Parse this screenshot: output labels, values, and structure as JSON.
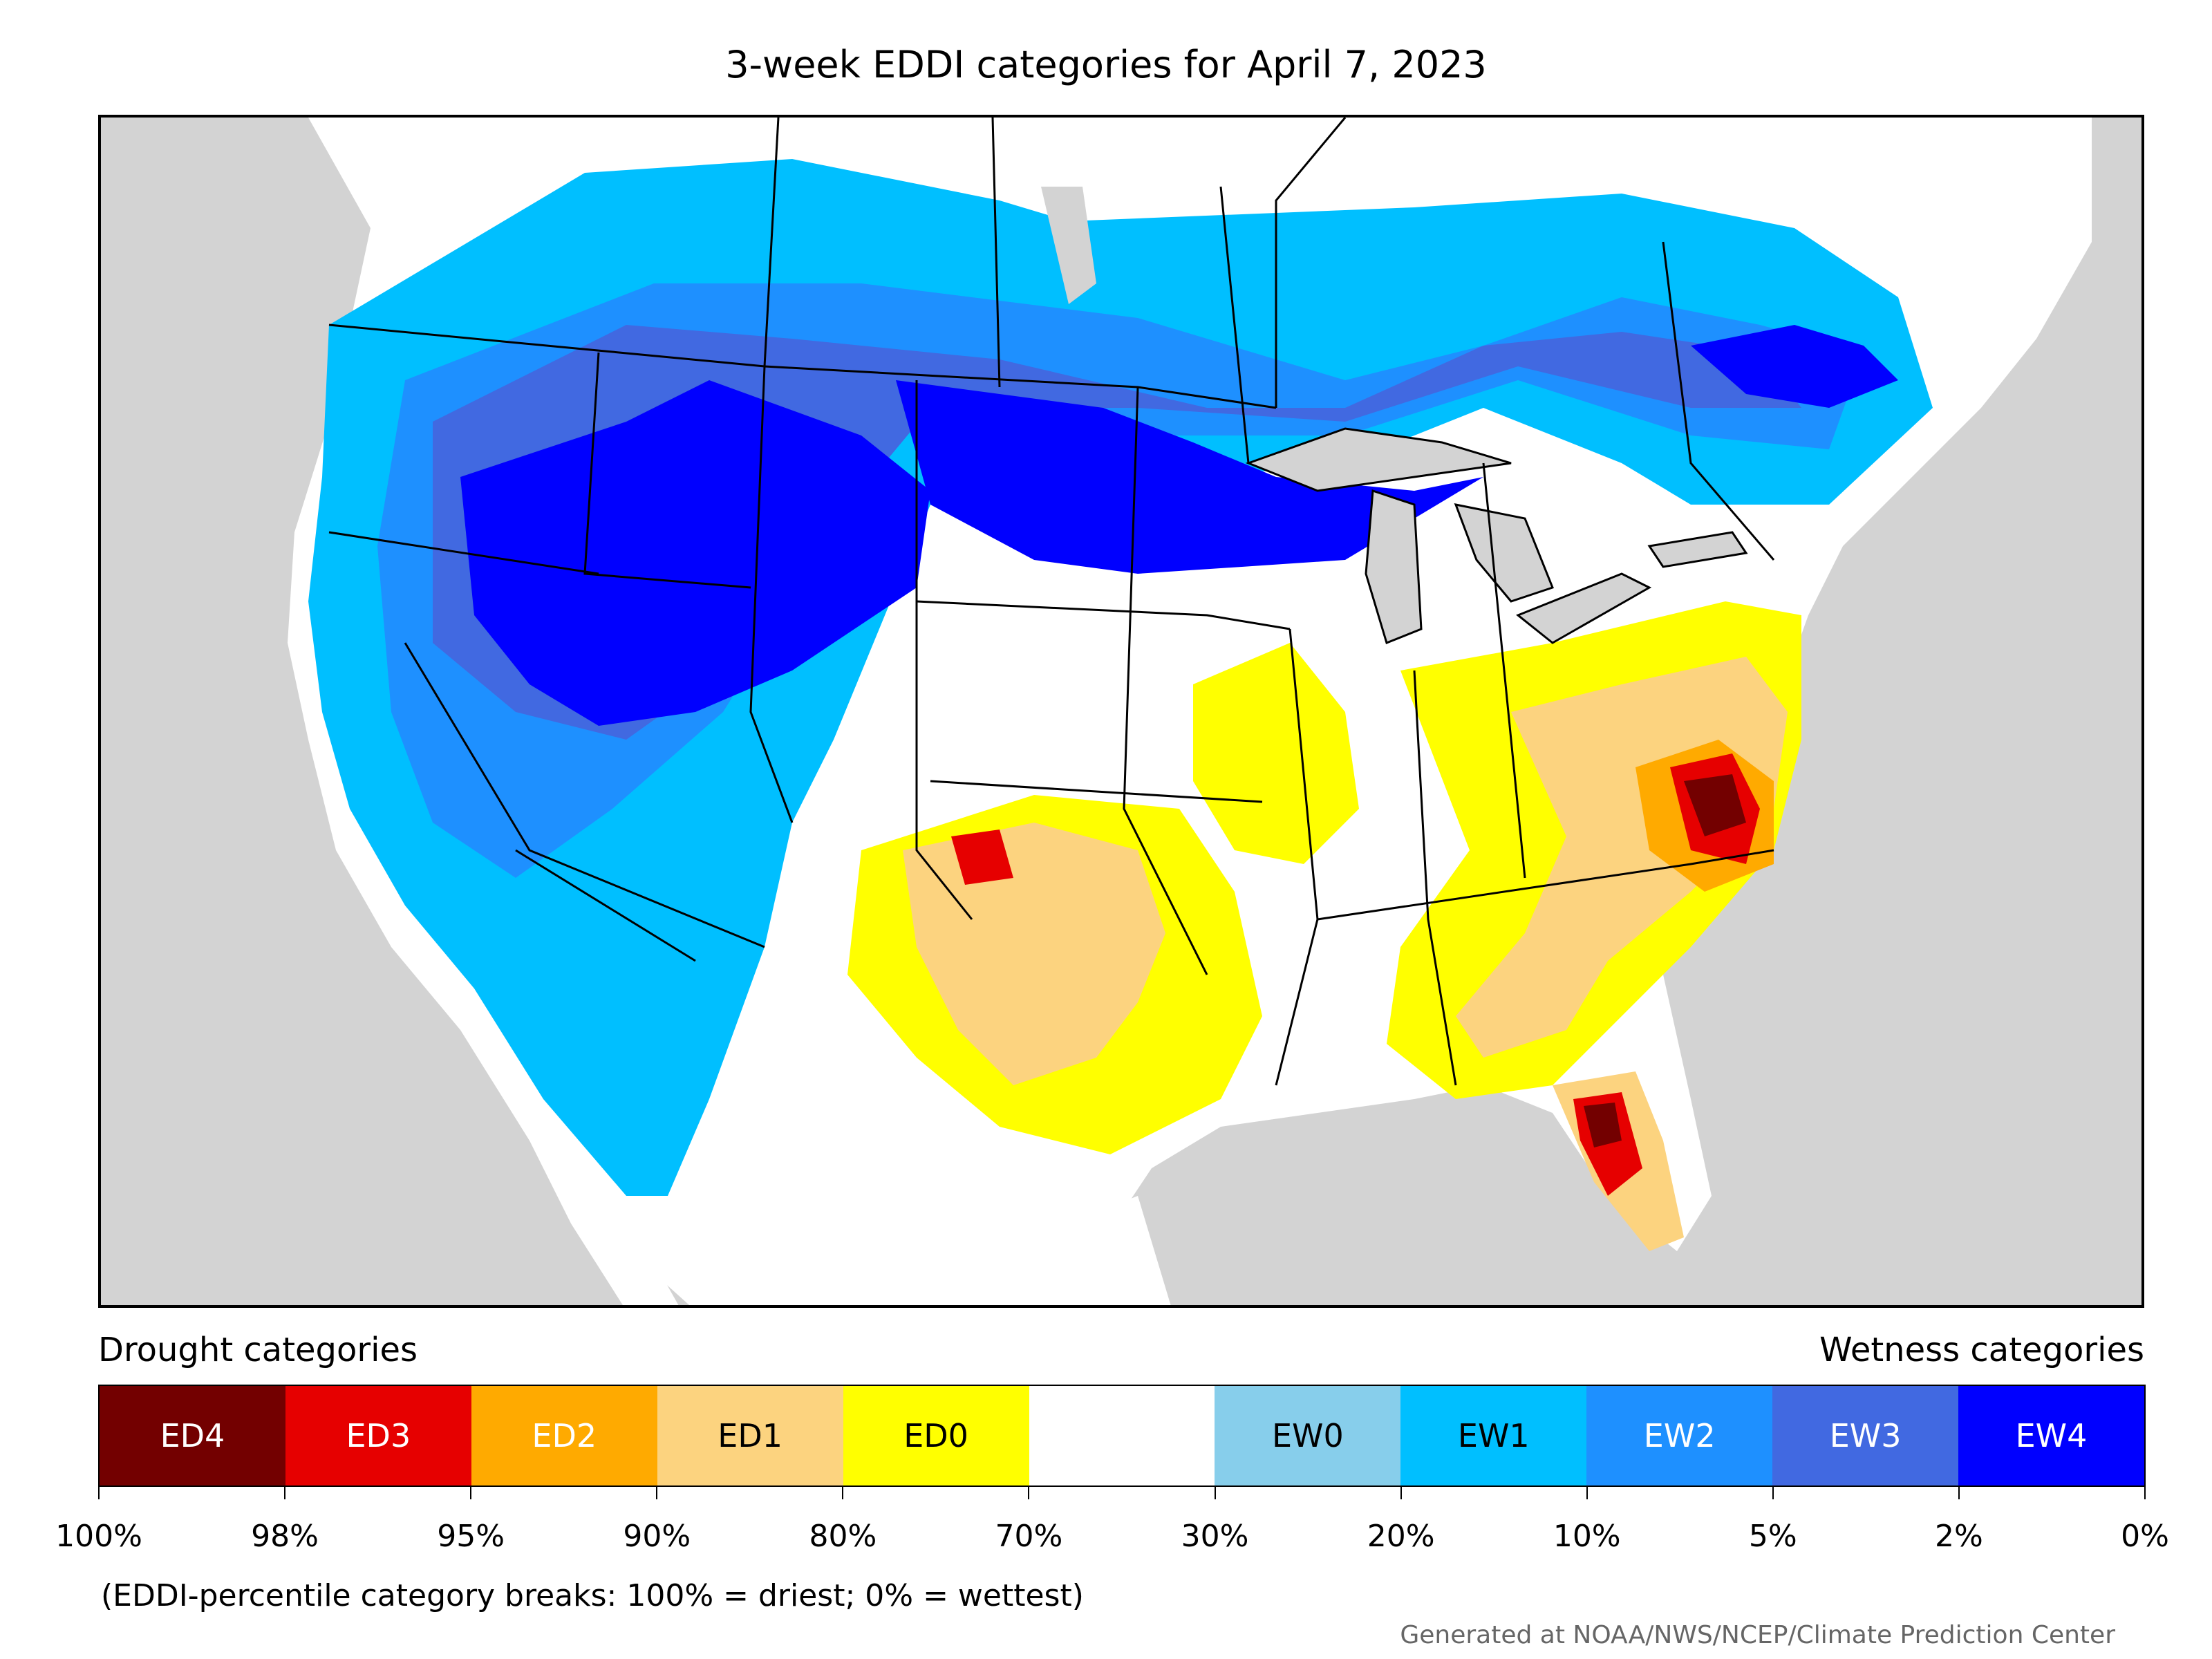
{
  "title": "3-week EDDI categories for April 7, 2023",
  "legend": {
    "drought_heading": "Drought categories",
    "wetness_heading": "Wetness categories",
    "categories": [
      {
        "label": "ED4",
        "color": "#730000",
        "text_color": "#ffffff"
      },
      {
        "label": "ED3",
        "color": "#e60000",
        "text_color": "#ffffff"
      },
      {
        "label": "ED2",
        "color": "#ffaa00",
        "text_color": "#ffffff"
      },
      {
        "label": "ED1",
        "color": "#fcd37f",
        "text_color": "#000000"
      },
      {
        "label": "ED0",
        "color": "#ffff00",
        "text_color": "#000000"
      },
      {
        "label": "",
        "color": "#ffffff",
        "text_color": "#000000"
      },
      {
        "label": "EW0",
        "color": "#87ceeb",
        "text_color": "#000000"
      },
      {
        "label": "EW1",
        "color": "#00bfff",
        "text_color": "#000000"
      },
      {
        "label": "EW2",
        "color": "#1e90ff",
        "text_color": "#ffffff"
      },
      {
        "label": "EW3",
        "color": "#4169e1",
        "text_color": "#ffffff"
      },
      {
        "label": "EW4",
        "color": "#0000ff",
        "text_color": "#ffffff"
      }
    ],
    "tick_labels": [
      "100%",
      "98%",
      "95%",
      "90%",
      "80%",
      "70%",
      "30%",
      "20%",
      "10%",
      "5%",
      "2%",
      "0%"
    ]
  },
  "note": "(EDDI-percentile category breaks: 100% = driest; 0% = wettest)",
  "credit": "Generated at NOAA/NWS/NCEP/Climate Prediction Center",
  "colors": {
    "ocean": "#d3d3d3",
    "lakes": "#d3d3d3",
    "land_default": "#ffffff",
    "borders": "#000000"
  }
}
